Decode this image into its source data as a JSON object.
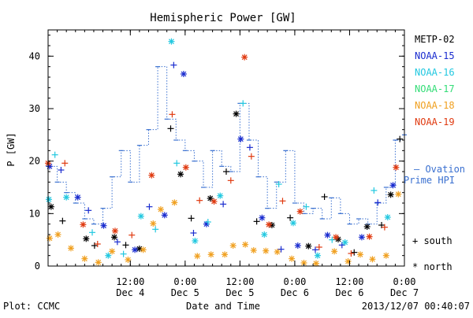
{
  "chart_data": {
    "type": "scatter",
    "title": "Hemispheric Power [GW]",
    "xlabel": "Date and Time",
    "ylabel": "P [GW]",
    "xlim": [
      "2013-12-03T18:00",
      "2013-12-07T00:00"
    ],
    "ylim": [
      0,
      45
    ],
    "yticks": [
      0,
      10,
      20,
      30,
      40
    ],
    "xticks": [
      {
        "x": "2013-12-04T12:00",
        "time": "12:00",
        "date": "Dec 4"
      },
      {
        "x": "2013-12-05T00:00",
        "time": "0:00",
        "date": "Dec 5"
      },
      {
        "x": "2013-12-05T12:00",
        "time": "12:00",
        "date": "Dec 5"
      },
      {
        "x": "2013-12-06T00:00",
        "time": "0:00",
        "date": "Dec 6"
      },
      {
        "x": "2013-12-06T12:00",
        "time": "12:00",
        "date": "Dec 6"
      },
      {
        "x": "2013-12-07T00:00",
        "time": "0:00",
        "date": "Dec 7"
      }
    ],
    "legend": [
      {
        "name": "METP-02",
        "color": "#000000"
      },
      {
        "name": "NOAA-15",
        "color": "#1a2ccf"
      },
      {
        "name": "NOAA-16",
        "color": "#22c8e0"
      },
      {
        "name": "NOAA-17",
        "color": "#33dd77"
      },
      {
        "name": "NOAA-18",
        "color": "#f0a020"
      },
      {
        "name": "NOAA-19",
        "color": "#e03a10"
      }
    ],
    "ovation_label_1": "— Ovation",
    "ovation_label_2": "Prime HPI",
    "ovation_color": "#3a70d0",
    "marker_south": "+ south",
    "marker_north": "* north",
    "ovation_series": {
      "name": "Ovation Prime HPI",
      "x": [
        "2013-12-03T18:00",
        "2013-12-03T20:00",
        "2013-12-03T22:00",
        "2013-12-04T00:00",
        "2013-12-04T02:00",
        "2013-12-04T04:00",
        "2013-12-04T06:00",
        "2013-12-04T08:00",
        "2013-12-04T10:00",
        "2013-12-04T12:00",
        "2013-12-04T14:00",
        "2013-12-04T16:00",
        "2013-12-04T18:00",
        "2013-12-04T20:00",
        "2013-12-04T22:00",
        "2013-12-05T00:00",
        "2013-12-05T02:00",
        "2013-12-05T04:00",
        "2013-12-05T06:00",
        "2013-12-05T08:00",
        "2013-12-05T10:00",
        "2013-12-05T12:00",
        "2013-12-05T14:00",
        "2013-12-05T16:00",
        "2013-12-05T18:00",
        "2013-12-05T20:00",
        "2013-12-05T22:00",
        "2013-12-06T00:00",
        "2013-12-06T02:00",
        "2013-12-06T04:00",
        "2013-12-06T06:00",
        "2013-12-06T08:00",
        "2013-12-06T10:00",
        "2013-12-06T12:00",
        "2013-12-06T14:00",
        "2013-12-06T16:00",
        "2013-12-06T18:00",
        "2013-12-06T20:00",
        "2013-12-06T22:00",
        "2013-12-07T00:00"
      ],
      "y": [
        19,
        16,
        14,
        12,
        9,
        8,
        11,
        17,
        22,
        16,
        23,
        26,
        38,
        28,
        24,
        22,
        20,
        15,
        22,
        19,
        18,
        31,
        24,
        17,
        11,
        16,
        22,
        12,
        10,
        11,
        9,
        13,
        10,
        8,
        9,
        8,
        12,
        15,
        24,
        25
      ]
    },
    "series": [
      {
        "name": "METP-02",
        "color": "#000000",
        "hemisphere": "mixed",
        "points": [
          [
            "2013-12-03T18:40",
            11.3
          ],
          [
            "2013-12-03T21:10",
            8.6
          ],
          [
            "2013-12-04T02:20",
            5.2
          ],
          [
            "2013-12-04T04:10",
            3.9
          ],
          [
            "2013-12-04T08:30",
            5.5
          ],
          [
            "2013-12-04T11:00",
            4.0
          ],
          [
            "2013-12-04T14:00",
            3.3
          ],
          [
            "2013-12-04T20:50",
            26.2
          ],
          [
            "2013-12-04T23:00",
            17.5
          ],
          [
            "2013-12-05T01:20",
            9.1
          ],
          [
            "2013-12-05T05:30",
            12.9
          ],
          [
            "2013-12-05T09:00",
            18.0
          ],
          [
            "2013-12-05T11:10",
            29.0
          ],
          [
            "2013-12-05T15:40",
            8.5
          ],
          [
            "2013-12-05T19:00",
            7.8
          ],
          [
            "2013-12-05T23:00",
            9.2
          ],
          [
            "2013-12-06T03:00",
            3.8
          ],
          [
            "2013-12-06T06:30",
            13.2
          ],
          [
            "2013-12-06T09:30",
            5.1
          ],
          [
            "2013-12-06T13:00",
            2.6
          ],
          [
            "2013-12-06T15:50",
            7.5
          ],
          [
            "2013-12-06T19:00",
            7.8
          ],
          [
            "2013-12-06T21:00",
            13.6
          ],
          [
            "2013-12-06T23:00",
            24.2
          ]
        ]
      },
      {
        "name": "NOAA-15",
        "color": "#1a2ccf",
        "hemisphere": "mixed",
        "points": [
          [
            "2013-12-03T18:20",
            19.0
          ],
          [
            "2013-12-03T20:50",
            18.3
          ],
          [
            "2013-12-04T00:30",
            13.1
          ],
          [
            "2013-12-04T02:50",
            10.6
          ],
          [
            "2013-12-04T06:10",
            7.7
          ],
          [
            "2013-12-04T09:10",
            4.6
          ],
          [
            "2013-12-04T13:00",
            3.1
          ],
          [
            "2013-12-04T16:10",
            11.3
          ],
          [
            "2013-12-04T19:30",
            9.7
          ],
          [
            "2013-12-04T21:30",
            38.3
          ],
          [
            "2013-12-04T23:40",
            36.6
          ],
          [
            "2013-12-05T01:50",
            6.3
          ],
          [
            "2013-12-05T04:40",
            8.0
          ],
          [
            "2013-12-05T08:20",
            11.8
          ],
          [
            "2013-12-05T12:10",
            24.2
          ],
          [
            "2013-12-05T14:10",
            22.6
          ],
          [
            "2013-12-05T16:50",
            9.2
          ],
          [
            "2013-12-05T21:00",
            3.2
          ],
          [
            "2013-12-06T00:40",
            3.9
          ],
          [
            "2013-12-06T04:30",
            3.1
          ],
          [
            "2013-12-06T07:10",
            5.9
          ],
          [
            "2013-12-06T10:20",
            4.0
          ],
          [
            "2013-12-06T14:40",
            5.5
          ],
          [
            "2013-12-06T18:10",
            12.1
          ],
          [
            "2013-12-06T21:30",
            15.4
          ]
        ]
      },
      {
        "name": "NOAA-16",
        "color": "#22c8e0",
        "hemisphere": "mixed",
        "points": [
          [
            "2013-12-03T18:10",
            12.7
          ],
          [
            "2013-12-03T19:30",
            21.2
          ],
          [
            "2013-12-03T22:00",
            13.1
          ],
          [
            "2013-12-04T03:40",
            6.4
          ],
          [
            "2013-12-04T07:10",
            2.0
          ],
          [
            "2013-12-04T10:30",
            2.3
          ],
          [
            "2013-12-04T14:20",
            9.5
          ],
          [
            "2013-12-04T17:30",
            7.0
          ],
          [
            "2013-12-04T21:00",
            42.8
          ],
          [
            "2013-12-04T22:10",
            19.6
          ],
          [
            "2013-12-05T02:10",
            4.8
          ],
          [
            "2013-12-05T05:00",
            8.4
          ],
          [
            "2013-12-05T07:40",
            13.4
          ],
          [
            "2013-12-05T12:40",
            31.0
          ],
          [
            "2013-12-05T17:20",
            6.0
          ],
          [
            "2013-12-05T20:30",
            15.6
          ],
          [
            "2013-12-05T23:40",
            8.2
          ],
          [
            "2013-12-06T02:30",
            11.3
          ],
          [
            "2013-12-06T05:00",
            2.0
          ],
          [
            "2013-12-06T08:10",
            5.0
          ],
          [
            "2013-12-06T11:00",
            4.5
          ],
          [
            "2013-12-06T17:20",
            14.4
          ],
          [
            "2013-12-06T20:20",
            9.3
          ]
        ]
      },
      {
        "name": "NOAA-18",
        "color": "#f0a020",
        "hemisphere": "north",
        "points": [
          [
            "2013-12-03T18:20",
            5.3
          ],
          [
            "2013-12-03T20:10",
            6.0
          ],
          [
            "2013-12-03T23:00",
            3.4
          ],
          [
            "2013-12-04T02:00",
            1.4
          ],
          [
            "2013-12-04T05:00",
            0.7
          ],
          [
            "2013-12-04T08:00",
            2.8
          ],
          [
            "2013-12-04T11:30",
            1.2
          ],
          [
            "2013-12-04T14:50",
            3.1
          ],
          [
            "2013-12-04T17:00",
            8.1
          ],
          [
            "2013-12-04T18:40",
            10.8
          ],
          [
            "2013-12-04T21:40",
            12.1
          ],
          [
            "2013-12-05T02:40",
            1.9
          ],
          [
            "2013-12-05T05:40",
            2.2
          ],
          [
            "2013-12-05T08:40",
            2.2
          ],
          [
            "2013-12-05T10:30",
            3.9
          ],
          [
            "2013-12-05T13:10",
            4.1
          ],
          [
            "2013-12-05T15:00",
            3.0
          ],
          [
            "2013-12-05T17:40",
            2.9
          ],
          [
            "2013-12-05T20:10",
            2.7
          ],
          [
            "2013-12-05T23:20",
            1.4
          ],
          [
            "2013-12-06T02:00",
            0.6
          ],
          [
            "2013-12-06T04:40",
            0.5
          ],
          [
            "2013-12-06T08:40",
            2.8
          ],
          [
            "2013-12-06T11:40",
            0.9
          ],
          [
            "2013-12-06T14:20",
            2.2
          ],
          [
            "2013-12-06T17:00",
            1.3
          ],
          [
            "2013-12-06T20:00",
            2.0
          ],
          [
            "2013-12-06T22:40",
            13.7
          ]
        ]
      },
      {
        "name": "NOAA-19",
        "color": "#e03a10",
        "hemisphere": "mixed",
        "points": [
          [
            "2013-12-03T18:00",
            19.6
          ],
          [
            "2013-12-03T21:40",
            19.6
          ],
          [
            "2013-12-04T01:40",
            7.9
          ],
          [
            "2013-12-04T04:50",
            4.2
          ],
          [
            "2013-12-04T08:40",
            6.7
          ],
          [
            "2013-12-04T12:20",
            5.9
          ],
          [
            "2013-12-04T16:40",
            17.3
          ],
          [
            "2013-12-04T21:10",
            28.9
          ],
          [
            "2013-12-05T00:10",
            18.8
          ],
          [
            "2013-12-05T03:10",
            12.5
          ],
          [
            "2013-12-05T06:20",
            12.3
          ],
          [
            "2013-12-05T10:00",
            16.3
          ],
          [
            "2013-12-05T13:00",
            39.8
          ],
          [
            "2013-12-05T14:30",
            20.9
          ],
          [
            "2013-12-05T18:20",
            7.9
          ],
          [
            "2013-12-05T21:20",
            12.4
          ],
          [
            "2013-12-06T01:10",
            10.4
          ],
          [
            "2013-12-06T05:20",
            3.6
          ],
          [
            "2013-12-06T09:00",
            5.5
          ],
          [
            "2013-12-06T12:20",
            2.4
          ],
          [
            "2013-12-06T16:20",
            5.6
          ],
          [
            "2013-12-06T19:40",
            7.4
          ],
          [
            "2013-12-06T22:10",
            18.8
          ]
        ]
      }
    ]
  },
  "footer": {
    "plot_credit": "Plot: CCMC",
    "timestamp": "2013/12/07 00:40:07"
  }
}
